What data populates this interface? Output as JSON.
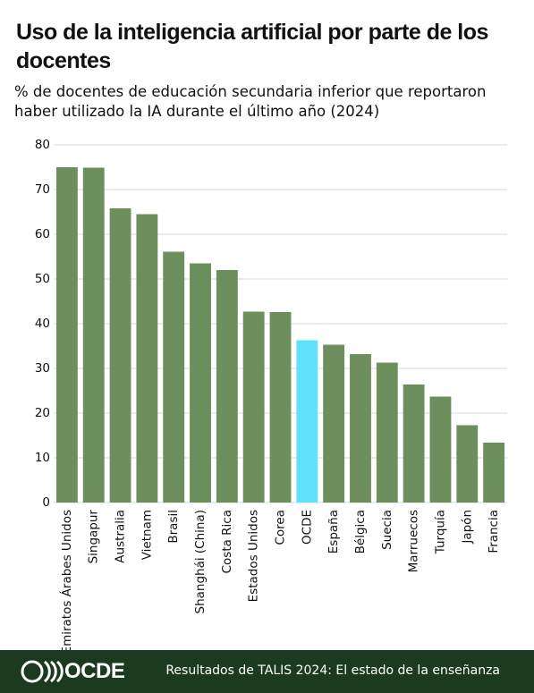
{
  "chart_data": {
    "type": "bar",
    "title": "Uso de la inteligencia artificial por parte de los docentes",
    "subtitle": "% de docentes de educación secundaria inferior que reportaron haber utilizado la IA durante el último año (2024)",
    "categories": [
      "Emiratos Árabes Unidos",
      "Singapur",
      "Australia",
      "Vietnam",
      "Brasil",
      "Shanghái (China)",
      "Costa Rica",
      "Estados Unidos",
      "Corea",
      "OCDE",
      "España",
      "Bélgica",
      "Suecia",
      "Marruecos",
      "Turquía",
      "Japón",
      "Francia"
    ],
    "values": [
      75.0,
      74.9,
      65.8,
      64.5,
      56.1,
      53.5,
      52.0,
      42.7,
      42.6,
      36.3,
      35.3,
      33.2,
      31.3,
      26.4,
      23.7,
      17.3,
      13.4
    ],
    "colors": [
      "#6d8f5d",
      "#6d8f5d",
      "#6d8f5d",
      "#6d8f5d",
      "#6d8f5d",
      "#6d8f5d",
      "#6d8f5d",
      "#6d8f5d",
      "#6d8f5d",
      "#5fe1fb",
      "#6d8f5d",
      "#6d8f5d",
      "#6d8f5d",
      "#6d8f5d",
      "#6d8f5d",
      "#6d8f5d",
      "#6d8f5d"
    ],
    "ylim": [
      0,
      80
    ],
    "yticks": [
      0,
      10,
      20,
      30,
      40,
      50,
      60,
      70,
      80
    ],
    "grid": true
  },
  "footer": {
    "logo": "OCDE",
    "source": "Resultados de TALIS 2024: El estado de la enseñanza"
  }
}
